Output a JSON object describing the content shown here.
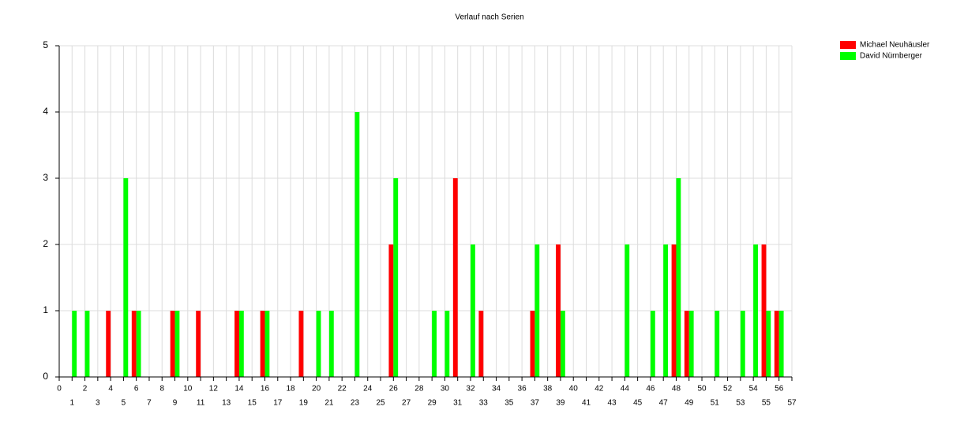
{
  "chart_data": {
    "type": "bar",
    "title": "Verlauf nach Serien",
    "x": [
      1,
      2,
      3,
      4,
      5,
      6,
      7,
      8,
      9,
      10,
      11,
      12,
      13,
      14,
      15,
      16,
      17,
      18,
      19,
      20,
      21,
      22,
      23,
      24,
      25,
      26,
      27,
      28,
      29,
      30,
      31,
      32,
      33,
      34,
      35,
      36,
      37,
      38,
      39,
      40,
      41,
      42,
      43,
      44,
      45,
      46,
      47,
      48,
      49,
      50,
      51,
      52,
      53,
      54,
      55,
      56
    ],
    "series": [
      {
        "name": "Michael Neuhäusler",
        "color": "#ff0000",
        "values": [
          0,
          0,
          0,
          1,
          0,
          1,
          0,
          0,
          1,
          0,
          1,
          0,
          0,
          1,
          0,
          1,
          0,
          0,
          1,
          0,
          0,
          0,
          0,
          0,
          0,
          2,
          0,
          0,
          0,
          0,
          3,
          0,
          1,
          0,
          0,
          0,
          1,
          0,
          2,
          0,
          0,
          0,
          0,
          0,
          0,
          0,
          0,
          2,
          1,
          0,
          0,
          0,
          0,
          0,
          2,
          1
        ]
      },
      {
        "name": "David Nürnberger",
        "color": "#00ff00",
        "values": [
          1,
          1,
          0,
          0,
          3,
          1,
          0,
          0,
          1,
          0,
          0,
          0,
          0,
          1,
          0,
          1,
          0,
          0,
          0,
          1,
          1,
          0,
          4,
          0,
          0,
          3,
          0,
          0,
          1,
          1,
          0,
          2,
          0,
          0,
          0,
          0,
          2,
          0,
          1,
          0,
          0,
          0,
          0,
          2,
          0,
          1,
          2,
          3,
          1,
          0,
          1,
          0,
          1,
          2,
          1,
          1
        ]
      }
    ],
    "xlim": [
      0,
      57
    ],
    "xticks": [
      0,
      1,
      2,
      3,
      4,
      5,
      6,
      7,
      8,
      9,
      10,
      11,
      12,
      13,
      14,
      15,
      16,
      17,
      18,
      19,
      20,
      21,
      22,
      23,
      24,
      25,
      26,
      27,
      28,
      29,
      30,
      31,
      32,
      33,
      34,
      35,
      36,
      37,
      38,
      39,
      40,
      41,
      42,
      43,
      44,
      45,
      46,
      47,
      48,
      49,
      50,
      51,
      52,
      53,
      54,
      55,
      56,
      57
    ],
    "ylim": [
      0,
      5
    ],
    "yticks": [
      0,
      1,
      2,
      3,
      4,
      5
    ],
    "grid": true,
    "legend": "top-right"
  }
}
